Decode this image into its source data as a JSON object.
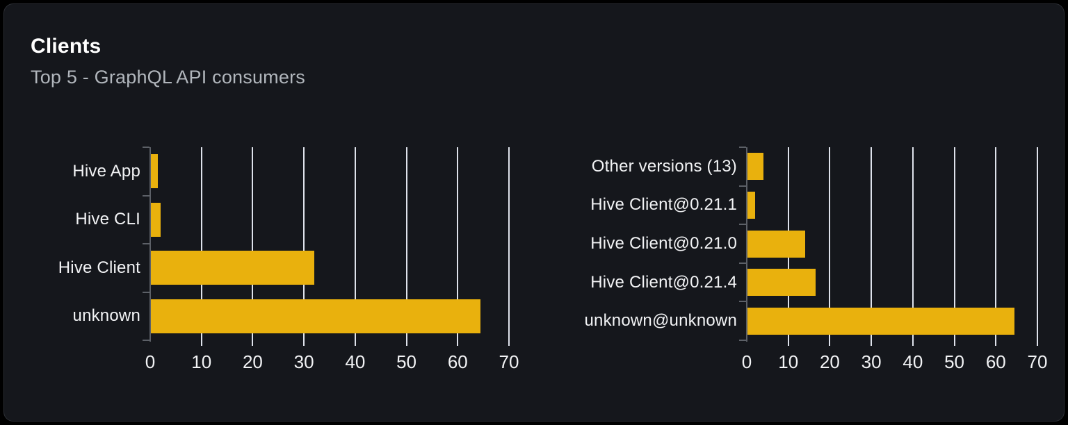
{
  "card": {
    "title": "Clients",
    "subtitle": "Top 5 - GraphQL API consumers"
  },
  "colors": {
    "bar": "#e9b10d",
    "card_bg": "#15171c",
    "page_bg": "#000000",
    "card_border": "#2c2f35",
    "gridline": "#dee2eb",
    "axis": "#5c6067",
    "title": "#ffffff",
    "subtitle": "#b1b6bc",
    "label": "#f2f3f5"
  },
  "chart_data": [
    {
      "type": "bar",
      "orientation": "horizontal",
      "title": "",
      "categories": [
        "Hive App",
        "Hive CLI",
        "Hive Client",
        "unknown"
      ],
      "values": [
        1.5,
        2,
        32,
        64.5
      ],
      "xlim": [
        0,
        70
      ],
      "xticks": [
        0,
        10,
        20,
        30,
        40,
        50,
        60,
        70
      ],
      "grid": true,
      "legend": false
    },
    {
      "type": "bar",
      "orientation": "horizontal",
      "title": "",
      "categories": [
        "Other versions (13)",
        "Hive Client@0.21.1",
        "Hive Client@0.21.0",
        "Hive Client@0.21.4",
        "unknown@unknown"
      ],
      "values": [
        4,
        2,
        14,
        16.5,
        64.5
      ],
      "xlim": [
        0,
        70
      ],
      "xticks": [
        0,
        10,
        20,
        30,
        40,
        50,
        60,
        70
      ],
      "grid": true,
      "legend": false
    }
  ]
}
